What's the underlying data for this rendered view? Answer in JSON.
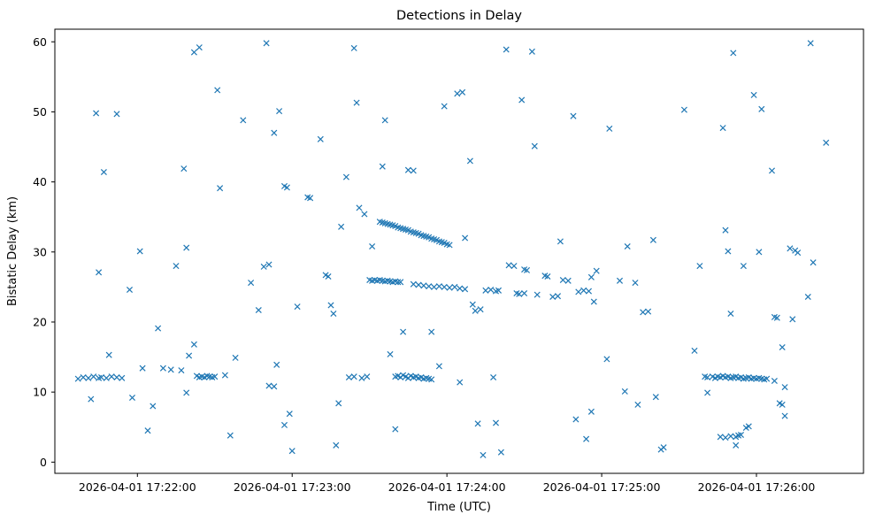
{
  "figure": {
    "background": "#ffffff",
    "axes_edge_color": "#000000"
  },
  "chart_data": {
    "type": "scatter",
    "title": "Detections in Delay",
    "xlabel": "Time (UTC)",
    "ylabel": "Bistatic Delay (km)",
    "marker": "x",
    "marker_color": "#1f77b4",
    "legend": "none",
    "grid": false,
    "x_unit": "seconds after 2026-04-01 17:21:00 UTC",
    "xlim": [
      28,
      341.5
    ],
    "ylim": [
      -1.6,
      61.8
    ],
    "x_ticks": [
      {
        "seconds": 60,
        "label": "2026-04-01 17:22:00"
      },
      {
        "seconds": 120,
        "label": "2026-04-01 17:23:00"
      },
      {
        "seconds": 180,
        "label": "2026-04-01 17:24:00"
      },
      {
        "seconds": 240,
        "label": "2026-04-01 17:25:00"
      },
      {
        "seconds": 300,
        "label": "2026-04-01 17:26:00"
      }
    ],
    "y_ticks": [
      0,
      10,
      20,
      30,
      40,
      50,
      60
    ],
    "points": [
      [
        37,
        11.9
      ],
      [
        39,
        12.1
      ],
      [
        41,
        12.0
      ],
      [
        42,
        9.0
      ],
      [
        43,
        12.2
      ],
      [
        44,
        49.8
      ],
      [
        45,
        27.1
      ],
      [
        45,
        12.0
      ],
      [
        46,
        12.1
      ],
      [
        47,
        41.4
      ],
      [
        48,
        12.0
      ],
      [
        49,
        15.3
      ],
      [
        50,
        12.2
      ],
      [
        52,
        49.7
      ],
      [
        52,
        12.1
      ],
      [
        54,
        12.0
      ],
      [
        57,
        24.6
      ],
      [
        58,
        9.2
      ],
      [
        61,
        30.1
      ],
      [
        62,
        13.4
      ],
      [
        64,
        4.5
      ],
      [
        66,
        8.0
      ],
      [
        68,
        19.1
      ],
      [
        70,
        13.4
      ],
      [
        73,
        13.2
      ],
      [
        75,
        28.0
      ],
      [
        77,
        13.1
      ],
      [
        78,
        41.9
      ],
      [
        79,
        30.6
      ],
      [
        79,
        9.9
      ],
      [
        80,
        15.2
      ],
      [
        82,
        16.8
      ],
      [
        82,
        58.5
      ],
      [
        84,
        59.2
      ],
      [
        83,
        12.3
      ],
      [
        84,
        12.1
      ],
      [
        85,
        12.2
      ],
      [
        86,
        12.1
      ],
      [
        87,
        12.3
      ],
      [
        88,
        12.2
      ],
      [
        89,
        12.1
      ],
      [
        90,
        12.2
      ],
      [
        91,
        53.1
      ],
      [
        92,
        39.1
      ],
      [
        94,
        12.4
      ],
      [
        96,
        3.8
      ],
      [
        98,
        14.9
      ],
      [
        101,
        48.8
      ],
      [
        104,
        25.6
      ],
      [
        107,
        21.7
      ],
      [
        109,
        27.9
      ],
      [
        110,
        59.8
      ],
      [
        111,
        28.2
      ],
      [
        111,
        10.9
      ],
      [
        113,
        10.8
      ],
      [
        113,
        47.0
      ],
      [
        114,
        13.9
      ],
      [
        115,
        50.1
      ],
      [
        117,
        39.4
      ],
      [
        117,
        5.3
      ],
      [
        118,
        39.2
      ],
      [
        119,
        6.9
      ],
      [
        120,
        1.6
      ],
      [
        122,
        22.2
      ],
      [
        126,
        37.8
      ],
      [
        127,
        37.7
      ],
      [
        131,
        46.1
      ],
      [
        133,
        26.7
      ],
      [
        134,
        26.5
      ],
      [
        135,
        22.4
      ],
      [
        136,
        21.2
      ],
      [
        137,
        2.4
      ],
      [
        138,
        8.4
      ],
      [
        139,
        33.6
      ],
      [
        141,
        40.7
      ],
      [
        142,
        12.1
      ],
      [
        144,
        12.2
      ],
      [
        144,
        59.1
      ],
      [
        145,
        51.3
      ],
      [
        146,
        36.3
      ],
      [
        147,
        12.0
      ],
      [
        148,
        35.4
      ],
      [
        149,
        12.2
      ],
      [
        151,
        30.8
      ],
      [
        150,
        26.0
      ],
      [
        151,
        25.9
      ],
      [
        152,
        26.0
      ],
      [
        153,
        25.9
      ],
      [
        154,
        26.0
      ],
      [
        155,
        25.9
      ],
      [
        156,
        25.8
      ],
      [
        157,
        25.9
      ],
      [
        158,
        25.8
      ],
      [
        159,
        25.7
      ],
      [
        160,
        25.8
      ],
      [
        161,
        25.7
      ],
      [
        162,
        25.7
      ],
      [
        154,
        34.3
      ],
      [
        155,
        34.2
      ],
      [
        156,
        34.1
      ],
      [
        157,
        34.0
      ],
      [
        158,
        33.9
      ],
      [
        159,
        33.8
      ],
      [
        160,
        33.7
      ],
      [
        161,
        33.5
      ],
      [
        162,
        33.4
      ],
      [
        163,
        33.3
      ],
      [
        164,
        33.2
      ],
      [
        165,
        33.1
      ],
      [
        166,
        32.9
      ],
      [
        167,
        32.8
      ],
      [
        168,
        32.7
      ],
      [
        169,
        32.6
      ],
      [
        170,
        32.4
      ],
      [
        171,
        32.3
      ],
      [
        172,
        32.2
      ],
      [
        173,
        32.1
      ],
      [
        174,
        31.9
      ],
      [
        175,
        31.8
      ],
      [
        176,
        31.7
      ],
      [
        177,
        31.5
      ],
      [
        178,
        31.4
      ],
      [
        179,
        31.3
      ],
      [
        180,
        31.1
      ],
      [
        181,
        31.0
      ],
      [
        155,
        42.2
      ],
      [
        156,
        48.8
      ],
      [
        158,
        15.4
      ],
      [
        160,
        4.7
      ],
      [
        160,
        12.2
      ],
      [
        161,
        12.3
      ],
      [
        162,
        12.1
      ],
      [
        163,
        12.4
      ],
      [
        164,
        12.2
      ],
      [
        165,
        12.0
      ],
      [
        166,
        12.3
      ],
      [
        167,
        12.1
      ],
      [
        168,
        12.2
      ],
      [
        169,
        12.0
      ],
      [
        170,
        12.1
      ],
      [
        171,
        11.9
      ],
      [
        172,
        12.0
      ],
      [
        173,
        11.9
      ],
      [
        174,
        11.8
      ],
      [
        163,
        18.6
      ],
      [
        165,
        41.7
      ],
      [
        167,
        41.6
      ],
      [
        167,
        25.4
      ],
      [
        169,
        25.3
      ],
      [
        171,
        25.2
      ],
      [
        173,
        25.1
      ],
      [
        175,
        25.0
      ],
      [
        177,
        25.1
      ],
      [
        179,
        25.0
      ],
      [
        181,
        24.9
      ],
      [
        183,
        25.0
      ],
      [
        185,
        24.8
      ],
      [
        187,
        24.7
      ],
      [
        174,
        18.6
      ],
      [
        177,
        13.7
      ],
      [
        179,
        50.8
      ],
      [
        184,
        52.6
      ],
      [
        185,
        11.4
      ],
      [
        186,
        52.8
      ],
      [
        187,
        32.0
      ],
      [
        189,
        43.0
      ],
      [
        190,
        22.5
      ],
      [
        191,
        21.6
      ],
      [
        192,
        5.5
      ],
      [
        193,
        21.8
      ],
      [
        194,
        1.0
      ],
      [
        195,
        24.5
      ],
      [
        197,
        24.6
      ],
      [
        198,
        12.1
      ],
      [
        199,
        24.4
      ],
      [
        199,
        5.6
      ],
      [
        200,
        24.5
      ],
      [
        201,
        1.4
      ],
      [
        203,
        58.9
      ],
      [
        204,
        28.1
      ],
      [
        206,
        28.0
      ],
      [
        207,
        24.1
      ],
      [
        208,
        24.0
      ],
      [
        209,
        51.7
      ],
      [
        210,
        24.1
      ],
      [
        210,
        27.5
      ],
      [
        211,
        27.4
      ],
      [
        213,
        58.6
      ],
      [
        214,
        45.1
      ],
      [
        215,
        23.9
      ],
      [
        218,
        26.6
      ],
      [
        219,
        26.5
      ],
      [
        221,
        23.6
      ],
      [
        223,
        23.7
      ],
      [
        224,
        31.5
      ],
      [
        225,
        26.0
      ],
      [
        227,
        25.9
      ],
      [
        229,
        49.4
      ],
      [
        230,
        6.1
      ],
      [
        231,
        24.3
      ],
      [
        233,
        24.5
      ],
      [
        234,
        3.3
      ],
      [
        235,
        24.4
      ],
      [
        236,
        7.2
      ],
      [
        236,
        26.4
      ],
      [
        237,
        22.9
      ],
      [
        238,
        27.3
      ],
      [
        242,
        14.7
      ],
      [
        243,
        47.6
      ],
      [
        247,
        25.9
      ],
      [
        249,
        10.1
      ],
      [
        250,
        30.8
      ],
      [
        253,
        25.6
      ],
      [
        254,
        8.2
      ],
      [
        256,
        21.4
      ],
      [
        258,
        21.5
      ],
      [
        260,
        31.7
      ],
      [
        261,
        9.3
      ],
      [
        263,
        1.8
      ],
      [
        264,
        2.1
      ],
      [
        272,
        50.3
      ],
      [
        276,
        15.9
      ],
      [
        278,
        28.0
      ],
      [
        281,
        9.9
      ],
      [
        280,
        12.2
      ],
      [
        281,
        12.1
      ],
      [
        283,
        12.2
      ],
      [
        284,
        12.0
      ],
      [
        285,
        12.2
      ],
      [
        286,
        12.1
      ],
      [
        287,
        12.3
      ],
      [
        288,
        12.1
      ],
      [
        289,
        12.2
      ],
      [
        290,
        12.0
      ],
      [
        291,
        12.1
      ],
      [
        292,
        12.2
      ],
      [
        293,
        12.0
      ],
      [
        294,
        12.1
      ],
      [
        295,
        11.9
      ],
      [
        296,
        12.0
      ],
      [
        297,
        12.1
      ],
      [
        298,
        11.9
      ],
      [
        299,
        12.0
      ],
      [
        300,
        11.9
      ],
      [
        301,
        12.0
      ],
      [
        302,
        11.9
      ],
      [
        303,
        11.8
      ],
      [
        304,
        11.9
      ],
      [
        286,
        3.6
      ],
      [
        288,
        3.5
      ],
      [
        290,
        3.7
      ],
      [
        292,
        3.6
      ],
      [
        292,
        2.4
      ],
      [
        293,
        3.8
      ],
      [
        294,
        3.9
      ],
      [
        296,
        4.9
      ],
      [
        297,
        5.1
      ],
      [
        287,
        47.7
      ],
      [
        288,
        33.1
      ],
      [
        289,
        30.1
      ],
      [
        290,
        21.2
      ],
      [
        291,
        58.4
      ],
      [
        295,
        28.0
      ],
      [
        299,
        52.4
      ],
      [
        301,
        30.0
      ],
      [
        302,
        50.4
      ],
      [
        306,
        41.6
      ],
      [
        307,
        20.7
      ],
      [
        307,
        11.6
      ],
      [
        308,
        20.6
      ],
      [
        309,
        8.4
      ],
      [
        310,
        8.2
      ],
      [
        310,
        16.4
      ],
      [
        311,
        6.6
      ],
      [
        311,
        10.7
      ],
      [
        313,
        30.5
      ],
      [
        314,
        20.4
      ],
      [
        315,
        30.2
      ],
      [
        316,
        29.9
      ],
      [
        320,
        23.6
      ],
      [
        321,
        59.8
      ],
      [
        322,
        28.5
      ],
      [
        327,
        45.6
      ]
    ]
  }
}
